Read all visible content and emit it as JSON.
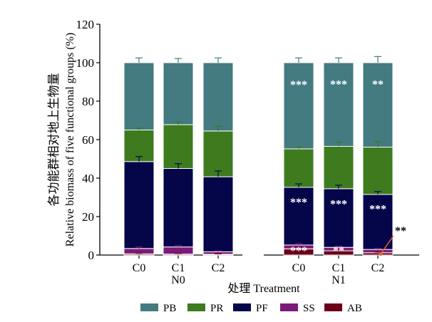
{
  "chart_data": {
    "type": "bar",
    "stacked": true,
    "ylabel_cn": "各功能群相对地上生物量",
    "ylabel_en": "Relative biomass of five functional groups (%)",
    "xlabel": "处理 Treatment",
    "ylim": [
      0,
      120
    ],
    "yticks": [
      "0",
      "20",
      "40",
      "60",
      "80",
      "100",
      "120"
    ],
    "groups": [
      {
        "label": "N0",
        "categories": [
          "C0",
          "C1",
          "C2"
        ]
      },
      {
        "label": "N1",
        "categories": [
          "C0",
          "C1",
          "C2"
        ]
      }
    ],
    "series": [
      {
        "name": "AB",
        "color": "#6b0018",
        "values": [
          0.6,
          0.5,
          0.4,
          3.2,
          2.2,
          1.2
        ],
        "errors": [
          0.3,
          0.3,
          0.2,
          0.8,
          0.5,
          0.3
        ]
      },
      {
        "name": "SS",
        "color": "#7b1a78",
        "values": [
          2.8,
          3.7,
          1.3,
          2.0,
          1.8,
          1.7
        ],
        "errors": [
          0.8,
          0.8,
          0.5,
          0.7,
          0.6,
          0.6
        ]
      },
      {
        "name": "PF",
        "color": "#05054a",
        "values": [
          45.2,
          40.8,
          39.0,
          30.0,
          30.5,
          28.6
        ],
        "errors": [
          2.6,
          2.5,
          3.0,
          1.8,
          1.8,
          1.5
        ]
      },
      {
        "name": "PR",
        "color": "#3e7b1f",
        "values": [
          16.4,
          22.8,
          23.8,
          20.0,
          22.0,
          24.6
        ],
        "errors": [
          1.0,
          1.3,
          2.5,
          1.0,
          2.2,
          3.0
        ]
      },
      {
        "name": "PB",
        "color": "#437b80",
        "values": [
          35.0,
          32.2,
          35.5,
          44.8,
          43.5,
          43.9
        ],
        "errors": [
          2.5,
          2.2,
          2.5,
          2.5,
          2.5,
          3.2
        ]
      }
    ],
    "annotations": [
      {
        "series": "PB",
        "bar": 3,
        "text": "***"
      },
      {
        "series": "PB",
        "bar": 4,
        "text": "***"
      },
      {
        "series": "PB",
        "bar": 5,
        "text": "**"
      },
      {
        "series": "PF",
        "bar": 3,
        "text": "***"
      },
      {
        "series": "PF",
        "bar": 4,
        "text": "***"
      },
      {
        "series": "PF",
        "bar": 5,
        "text": "***"
      },
      {
        "series": "AB",
        "bar": 3,
        "text": "***"
      },
      {
        "series": "AB",
        "bar": 4,
        "text": "**"
      },
      {
        "series": "AB",
        "bar": 5,
        "text": "**",
        "callout": true
      }
    ],
    "legend_order": [
      "PB",
      "PR",
      "PF",
      "SS",
      "AB"
    ],
    "legend_position": "bottom",
    "grid": false
  }
}
